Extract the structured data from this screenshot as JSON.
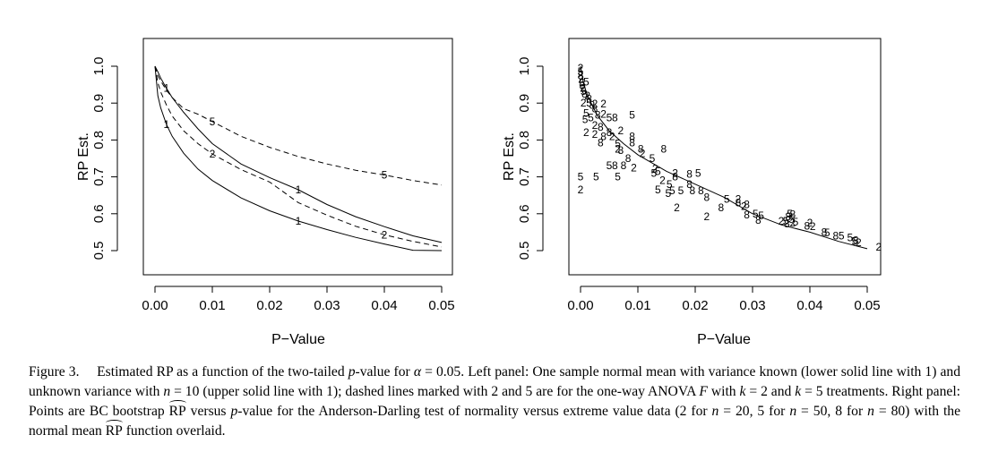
{
  "chart_data": [
    {
      "type": "line",
      "xlabel": "P−Value",
      "ylabel": "RP Est.",
      "xlim": [
        0,
        0.05
      ],
      "ylim": [
        0.5,
        1.0
      ],
      "x_ticks": [
        0.0,
        0.01,
        0.02,
        0.03,
        0.04,
        0.05
      ],
      "x_tick_labels": [
        "0.00",
        "0.01",
        "0.02",
        "0.03",
        "0.04",
        "0.05"
      ],
      "y_ticks": [
        0.5,
        0.6,
        0.7,
        0.8,
        0.9,
        1.0
      ],
      "y_tick_labels": [
        "0.5",
        "0.6",
        "0.7",
        "0.8",
        "0.9",
        "1.0"
      ],
      "series": [
        {
          "marker": "1",
          "style": "solid",
          "x": [
            0.0,
            0.0005,
            0.001,
            0.002,
            0.003,
            0.005,
            0.0075,
            0.01,
            0.015,
            0.02,
            0.025,
            0.03,
            0.035,
            0.04,
            0.045,
            0.05
          ],
          "values": [
            1.0,
            0.92,
            0.887,
            0.842,
            0.81,
            0.764,
            0.721,
            0.69,
            0.643,
            0.608,
            0.58,
            0.557,
            0.536,
            0.518,
            0.501,
            0.5
          ],
          "mark_x": [
            0.002,
            0.025
          ]
        },
        {
          "marker": "1",
          "style": "solid",
          "x": [
            0.0,
            0.0005,
            0.001,
            0.002,
            0.003,
            0.005,
            0.0075,
            0.01,
            0.015,
            0.02,
            0.025,
            0.03,
            0.035,
            0.04,
            0.045,
            0.05
          ],
          "values": [
            1.0,
            0.985,
            0.968,
            0.94,
            0.915,
            0.875,
            0.83,
            0.79,
            0.735,
            0.698,
            0.665,
            0.625,
            0.592,
            0.565,
            0.54,
            0.522
          ],
          "mark_x": [
            0.002,
            0.025
          ]
        },
        {
          "marker": "2",
          "style": "dashed",
          "x": [
            0.0,
            0.0005,
            0.001,
            0.002,
            0.003,
            0.005,
            0.0075,
            0.01,
            0.015,
            0.02,
            0.025,
            0.03,
            0.035,
            0.04,
            0.045,
            0.05
          ],
          "values": [
            1.0,
            0.955,
            0.93,
            0.895,
            0.865,
            0.825,
            0.79,
            0.762,
            0.72,
            0.686,
            0.63,
            0.596,
            0.566,
            0.543,
            0.525,
            0.51
          ],
          "mark_x": [
            0.01,
            0.04
          ]
        },
        {
          "marker": "5",
          "style": "dashed",
          "x": [
            0.0,
            0.0005,
            0.001,
            0.002,
            0.003,
            0.005,
            0.0075,
            0.01,
            0.015,
            0.02,
            0.025,
            0.03,
            0.035,
            0.04,
            0.045,
            0.05
          ],
          "values": [
            1.0,
            0.975,
            0.96,
            0.935,
            0.915,
            0.885,
            0.87,
            0.85,
            0.81,
            0.78,
            0.755,
            0.735,
            0.718,
            0.705,
            0.69,
            0.678
          ],
          "mark_x": [
            0.01,
            0.04
          ]
        }
      ]
    },
    {
      "type": "scatter",
      "xlabel": "P−Value",
      "ylabel": "RP Est.",
      "xlim": [
        0,
        0.05
      ],
      "ylim": [
        0.5,
        1.0
      ],
      "x_ticks": [
        0.0,
        0.01,
        0.02,
        0.03,
        0.04,
        0.05
      ],
      "x_tick_labels": [
        "0.00",
        "0.01",
        "0.02",
        "0.03",
        "0.04",
        "0.05"
      ],
      "y_ticks": [
        0.5,
        0.6,
        0.7,
        0.8,
        0.9,
        1.0
      ],
      "y_tick_labels": [
        "0.5",
        "0.6",
        "0.7",
        "0.8",
        "0.9",
        "1.0"
      ],
      "overlay": {
        "x": [
          0.0,
          0.0005,
          0.001,
          0.002,
          0.003,
          0.005,
          0.0075,
          0.01,
          0.015,
          0.02,
          0.025,
          0.03,
          0.035,
          0.04,
          0.045,
          0.05
        ],
        "values": [
          1.0,
          0.955,
          0.93,
          0.895,
          0.865,
          0.825,
          0.79,
          0.76,
          0.715,
          0.68,
          0.645,
          0.6,
          0.57,
          0.55,
          0.525,
          0.505
        ]
      },
      "points": [
        {
          "label": "2",
          "x": 0.0,
          "y": 0.995
        },
        {
          "label": "5",
          "x": 0.0,
          "y": 0.985
        },
        {
          "label": "8",
          "x": 0.0,
          "y": 0.975
        },
        {
          "label": "2",
          "x": 0.0001,
          "y": 0.965
        },
        {
          "label": "5",
          "x": 0.0002,
          "y": 0.955
        },
        {
          "label": "8",
          "x": 0.0003,
          "y": 0.948
        },
        {
          "label": "2",
          "x": 0.0004,
          "y": 0.94
        },
        {
          "label": "5",
          "x": 0.0005,
          "y": 0.932
        },
        {
          "label": "8",
          "x": 0.0007,
          "y": 0.925
        },
        {
          "label": "5",
          "x": 0.001,
          "y": 0.958
        },
        {
          "label": "2",
          "x": 0.0012,
          "y": 0.92
        },
        {
          "label": "8",
          "x": 0.0015,
          "y": 0.912
        },
        {
          "label": "2",
          "x": 0.0005,
          "y": 0.9
        },
        {
          "label": "5",
          "x": 0.0015,
          "y": 0.9
        },
        {
          "label": "8",
          "x": 0.002,
          "y": 0.895
        },
        {
          "label": "2",
          "x": 0.0025,
          "y": 0.898
        },
        {
          "label": "8",
          "x": 0.0025,
          "y": 0.885
        },
        {
          "label": "5",
          "x": 0.001,
          "y": 0.872
        },
        {
          "label": "2",
          "x": 0.004,
          "y": 0.898
        },
        {
          "label": "5",
          "x": 0.0018,
          "y": 0.86
        },
        {
          "label": "8",
          "x": 0.003,
          "y": 0.868
        },
        {
          "label": "2",
          "x": 0.004,
          "y": 0.87
        },
        {
          "label": "5",
          "x": 0.005,
          "y": 0.86
        },
        {
          "label": "8",
          "x": 0.006,
          "y": 0.86
        },
        {
          "label": "5",
          "x": 0.0008,
          "y": 0.855
        },
        {
          "label": "2",
          "x": 0.0025,
          "y": 0.84
        },
        {
          "label": "8",
          "x": 0.0035,
          "y": 0.835
        },
        {
          "label": "5",
          "x": 0.009,
          "y": 0.868
        },
        {
          "label": "2",
          "x": 0.001,
          "y": 0.82
        },
        {
          "label": "8",
          "x": 0.005,
          "y": 0.82
        },
        {
          "label": "2",
          "x": 0.007,
          "y": 0.825
        },
        {
          "label": "8",
          "x": 0.004,
          "y": 0.81
        },
        {
          "label": "2",
          "x": 0.0025,
          "y": 0.815
        },
        {
          "label": "2",
          "x": 0.0055,
          "y": 0.81
        },
        {
          "label": "8",
          "x": 0.009,
          "y": 0.81
        },
        {
          "label": "8",
          "x": 0.0035,
          "y": 0.792
        },
        {
          "label": "5",
          "x": 0.0065,
          "y": 0.79
        },
        {
          "label": "8",
          "x": 0.009,
          "y": 0.793
        },
        {
          "label": "2",
          "x": 0.0065,
          "y": 0.775
        },
        {
          "label": "8",
          "x": 0.007,
          "y": 0.772
        },
        {
          "label": "8",
          "x": 0.0105,
          "y": 0.775
        },
        {
          "label": "8",
          "x": 0.0145,
          "y": 0.775
        },
        {
          "label": "2",
          "x": 0.0108,
          "y": 0.763
        },
        {
          "label": "8",
          "x": 0.0083,
          "y": 0.75
        },
        {
          "label": "5",
          "x": 0.0125,
          "y": 0.75
        },
        {
          "label": "5",
          "x": 0.005,
          "y": 0.73
        },
        {
          "label": "8",
          "x": 0.006,
          "y": 0.73
        },
        {
          "label": "8",
          "x": 0.0075,
          "y": 0.73
        },
        {
          "label": "2",
          "x": 0.0093,
          "y": 0.725
        },
        {
          "label": "2",
          "x": 0.013,
          "y": 0.722
        },
        {
          "label": "5",
          "x": 0.0135,
          "y": 0.715
        },
        {
          "label": "5",
          "x": 0.0128,
          "y": 0.71
        },
        {
          "label": "2",
          "x": 0.0165,
          "y": 0.71
        },
        {
          "label": "8",
          "x": 0.0165,
          "y": 0.7
        },
        {
          "label": "8",
          "x": 0.019,
          "y": 0.707
        },
        {
          "label": "5",
          "x": 0.0205,
          "y": 0.71
        },
        {
          "label": "5",
          "x": 0.0,
          "y": 0.7
        },
        {
          "label": "5",
          "x": 0.0027,
          "y": 0.7
        },
        {
          "label": "5",
          "x": 0.0065,
          "y": 0.7
        },
        {
          "label": "2",
          "x": 0.0143,
          "y": 0.69
        },
        {
          "label": "5",
          "x": 0.0155,
          "y": 0.68
        },
        {
          "label": "8",
          "x": 0.019,
          "y": 0.68
        },
        {
          "label": "2",
          "x": 0.0,
          "y": 0.665
        },
        {
          "label": "5",
          "x": 0.0135,
          "y": 0.665
        },
        {
          "label": "5",
          "x": 0.016,
          "y": 0.663
        },
        {
          "label": "5",
          "x": 0.0175,
          "y": 0.663
        },
        {
          "label": "8",
          "x": 0.0195,
          "y": 0.663
        },
        {
          "label": "8",
          "x": 0.021,
          "y": 0.663
        },
        {
          "label": "5",
          "x": 0.0153,
          "y": 0.655
        },
        {
          "label": "8",
          "x": 0.022,
          "y": 0.645
        },
        {
          "label": "5",
          "x": 0.0255,
          "y": 0.64
        },
        {
          "label": "2",
          "x": 0.0275,
          "y": 0.64
        },
        {
          "label": "8",
          "x": 0.0275,
          "y": 0.63
        },
        {
          "label": "2",
          "x": 0.0285,
          "y": 0.62
        },
        {
          "label": "8",
          "x": 0.029,
          "y": 0.625
        },
        {
          "label": "8",
          "x": 0.0245,
          "y": 0.617
        },
        {
          "label": "2",
          "x": 0.0168,
          "y": 0.617
        },
        {
          "label": "5",
          "x": 0.0305,
          "y": 0.6
        },
        {
          "label": "5",
          "x": 0.0315,
          "y": 0.595
        },
        {
          "label": "8",
          "x": 0.029,
          "y": 0.597
        },
        {
          "label": "2",
          "x": 0.022,
          "y": 0.592
        },
        {
          "label": "5",
          "x": 0.0365,
          "y": 0.6
        },
        {
          "label": "8",
          "x": 0.037,
          "y": 0.598
        },
        {
          "label": "8",
          "x": 0.0362,
          "y": 0.592
        },
        {
          "label": "5",
          "x": 0.0368,
          "y": 0.585
        },
        {
          "label": "8",
          "x": 0.031,
          "y": 0.583
        },
        {
          "label": "2",
          "x": 0.035,
          "y": 0.58
        },
        {
          "label": "5",
          "x": 0.0358,
          "y": 0.58
        },
        {
          "label": "8",
          "x": 0.036,
          "y": 0.573
        },
        {
          "label": "2",
          "x": 0.037,
          "y": 0.575
        },
        {
          "label": "5",
          "x": 0.0375,
          "y": 0.578
        },
        {
          "label": "2",
          "x": 0.04,
          "y": 0.575
        },
        {
          "label": "8",
          "x": 0.0395,
          "y": 0.567
        },
        {
          "label": "2",
          "x": 0.0405,
          "y": 0.565
        },
        {
          "label": "8",
          "x": 0.0425,
          "y": 0.55
        },
        {
          "label": "5",
          "x": 0.043,
          "y": 0.548
        },
        {
          "label": "8",
          "x": 0.0445,
          "y": 0.54
        },
        {
          "label": "5",
          "x": 0.0455,
          "y": 0.54
        },
        {
          "label": "5",
          "x": 0.047,
          "y": 0.535
        },
        {
          "label": "8",
          "x": 0.048,
          "y": 0.528
        },
        {
          "label": "5",
          "x": 0.0478,
          "y": 0.525
        },
        {
          "label": "2",
          "x": 0.0485,
          "y": 0.522
        },
        {
          "label": "2",
          "x": 0.052,
          "y": 0.51
        }
      ]
    }
  ],
  "caption": {
    "s1": "Figure 3.  Estimated RP as a function of the two-tailed ",
    "s2": "p",
    "s3": "-value for ",
    "s4": "α",
    "s5": " = 0.05. Left panel: One sample normal mean with variance known (lower solid line with 1) and unknown variance with ",
    "s6": "n",
    "s7": " = 10 (upper solid line with 1); dashed lines marked with 2 and 5 are for the one-way ANOVA ",
    "s8": "F",
    "s9": " with ",
    "s10": "k",
    "s11": " = 2 and ",
    "s12": "k",
    "s13": " = 5 treatments. Right panel: Points are BC bootstrap ",
    "s14": "RP",
    "s15": " versus ",
    "s16": "p",
    "s17": "-value for the Anderson-Darling test of normality versus extreme value data (2 for ",
    "s18": "n",
    "s19": " = 20, 5 for ",
    "s20": "n",
    "s21": " = 50, 8 for ",
    "s22": "n",
    "s23": " = 80) with the normal mean ",
    "s24": "RP",
    "s25": " function overlaid."
  }
}
